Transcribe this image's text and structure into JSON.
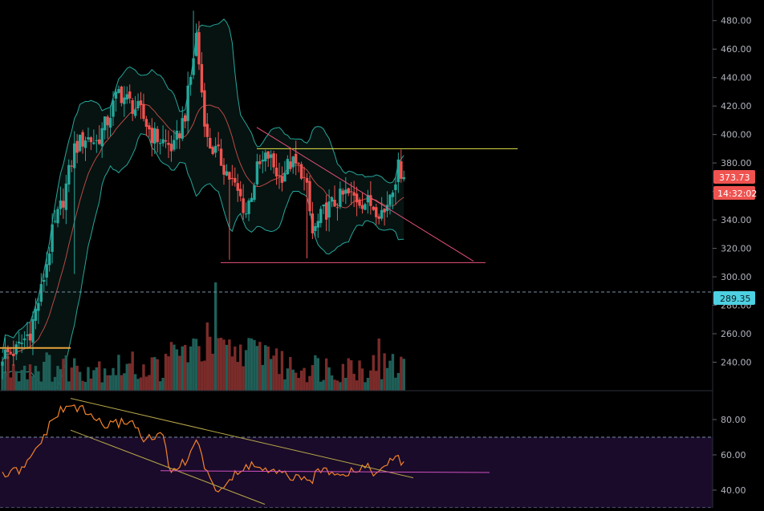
{
  "colors": {
    "background": "#000000",
    "up": "#26a69a",
    "down": "#ef5350",
    "bollinger": "#26a69a",
    "basis": "#b84a45",
    "resistance_line": "#e6e64a",
    "trend_line": "#e8507a",
    "support_line": "#e8507a",
    "rsi_line": "#f4832a",
    "rsi_band": "#1a0b2a",
    "rsi_trend": "#b8a84a",
    "rsi_mid": "#d050c0",
    "dashed": "#7a8fa6",
    "last_price_badge": "#ef5350",
    "level_badge": "#4dd0e1",
    "axis_text": "#b2b5be"
  },
  "badges": {
    "last_price": "373.73",
    "countdown": "14:32:02",
    "level": "289.35"
  },
  "chart_data": [
    {
      "type": "candlestick",
      "panel": "price",
      "ylim": [
        220,
        490
      ],
      "yticks": [
        "480.00",
        "460.00",
        "440.00",
        "420.00",
        "400.00",
        "380.00",
        "360.00",
        "340.00",
        "320.00",
        "300.00",
        "280.00",
        "260.00",
        "240.00"
      ],
      "yticks_values": [
        480,
        460,
        440,
        420,
        400,
        380,
        360,
        340,
        320,
        300,
        280,
        260,
        240
      ],
      "horizontal_levels": [
        {
          "value": 390,
          "style": "solid",
          "color": "resistance"
        },
        {
          "value": 310,
          "style": "solid",
          "color": "support"
        },
        {
          "value": 289.35,
          "style": "dashed"
        }
      ],
      "grid": false
    },
    {
      "type": "line",
      "panel": "rsi",
      "ylim": [
        30,
        95
      ],
      "yticks": [
        "80.00",
        "60.00",
        "40.00"
      ],
      "yticks_values": [
        80,
        60,
        40
      ],
      "band": [
        30,
        70
      ],
      "levels": [
        {
          "value": 50
        }
      ],
      "grid": false
    }
  ]
}
